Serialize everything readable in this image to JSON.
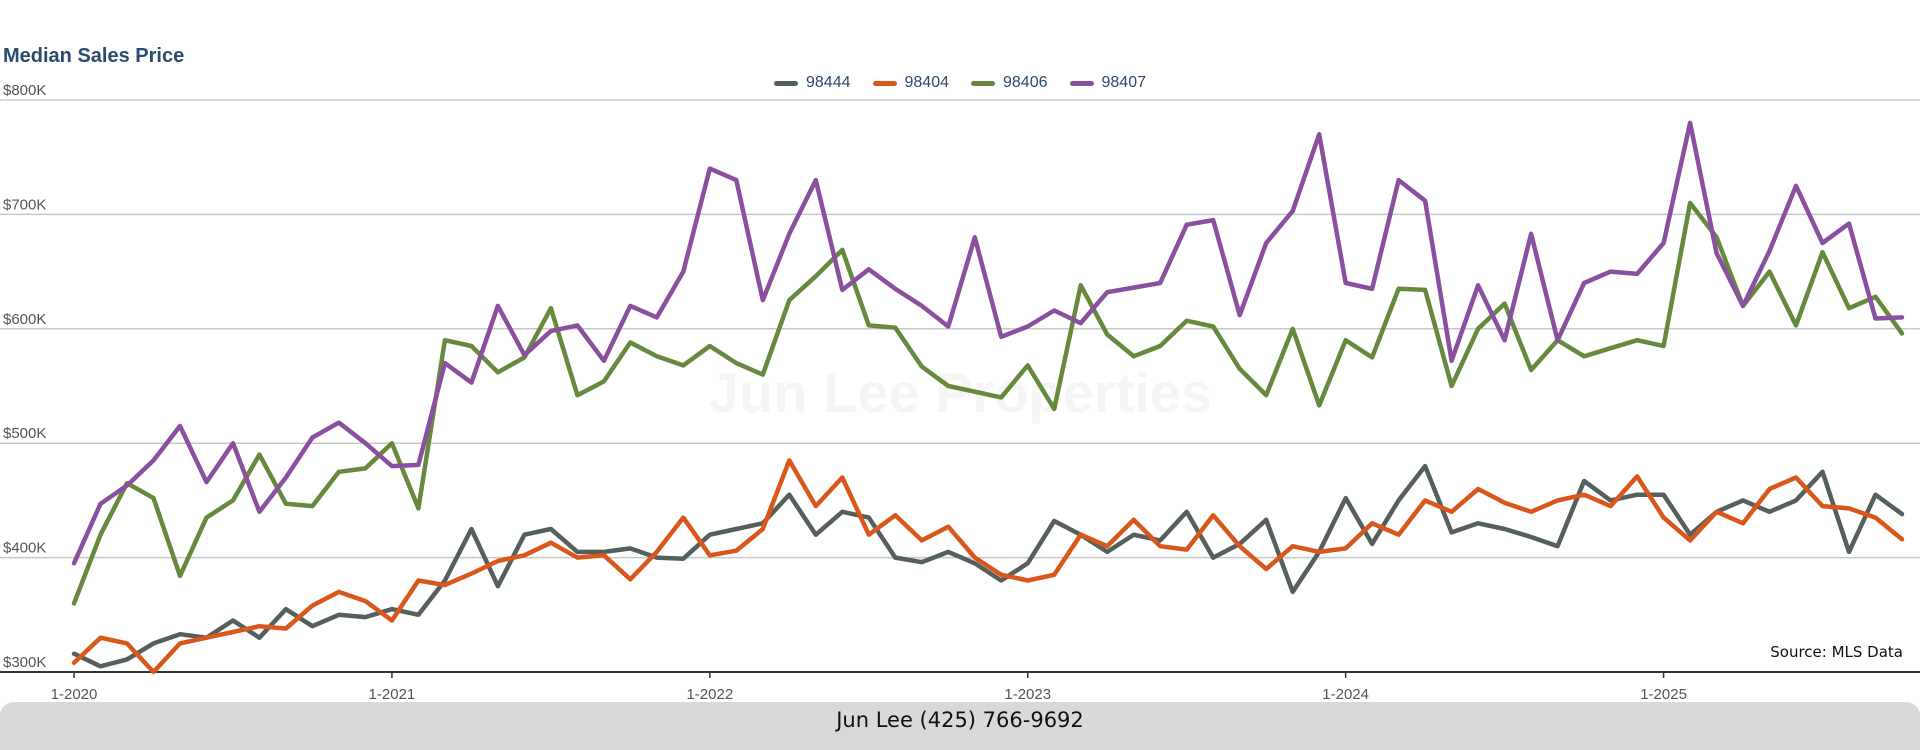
{
  "chart_data": {
    "type": "line",
    "title": "Median Sales Price",
    "xlabel": "",
    "ylabel": "",
    "ylim": [
      300000,
      800000
    ],
    "xlim": [
      "2020-01",
      "2025-10"
    ],
    "yticks": [
      300000,
      400000,
      500000,
      600000,
      700000,
      800000
    ],
    "ytick_labels": [
      "$300K",
      "$400K",
      "$500K",
      "$600K",
      "$700K",
      "$800K"
    ],
    "xticks": [
      "2020-01",
      "2021-01",
      "2022-01",
      "2023-01",
      "2024-01",
      "2025-01"
    ],
    "xtick_labels": [
      "1-2020",
      "1-2021",
      "1-2022",
      "1-2023",
      "1-2024",
      "1-2025"
    ],
    "grid": "horizontal",
    "legend_position": "top-center",
    "x": [
      "2020-01",
      "2020-02",
      "2020-03",
      "2020-04",
      "2020-05",
      "2020-06",
      "2020-07",
      "2020-08",
      "2020-09",
      "2020-10",
      "2020-11",
      "2020-12",
      "2021-01",
      "2021-02",
      "2021-03",
      "2021-04",
      "2021-05",
      "2021-06",
      "2021-07",
      "2021-08",
      "2021-09",
      "2021-10",
      "2021-11",
      "2021-12",
      "2022-01",
      "2022-02",
      "2022-03",
      "2022-04",
      "2022-05",
      "2022-06",
      "2022-07",
      "2022-08",
      "2022-09",
      "2022-10",
      "2022-11",
      "2022-12",
      "2023-01",
      "2023-02",
      "2023-03",
      "2023-04",
      "2023-05",
      "2023-06",
      "2023-07",
      "2023-08",
      "2023-09",
      "2023-10",
      "2023-11",
      "2023-12",
      "2024-01",
      "2024-02",
      "2024-03",
      "2024-04",
      "2024-05",
      "2024-06",
      "2024-07",
      "2024-08",
      "2024-09",
      "2024-10",
      "2024-11",
      "2024-12",
      "2025-01",
      "2025-02",
      "2025-03",
      "2025-04",
      "2025-05",
      "2025-06",
      "2025-07",
      "2025-08",
      "2025-09",
      "2025-10"
    ],
    "series": [
      {
        "name": "98444",
        "color": "#555f5c",
        "values": [
          316000,
          305000,
          311000,
          325000,
          333000,
          330000,
          345000,
          330000,
          355000,
          340000,
          350000,
          348000,
          355000,
          350000,
          380000,
          425000,
          375000,
          420000,
          425000,
          405000,
          405000,
          408000,
          400000,
          399000,
          420000,
          425000,
          430000,
          455000,
          420000,
          440000,
          435000,
          400000,
          396000,
          405000,
          395000,
          380000,
          395000,
          432000,
          420000,
          405000,
          420000,
          415000,
          440000,
          400000,
          412000,
          433000,
          370000,
          405000,
          452000,
          412000,
          450000,
          480000,
          422000,
          430000,
          425000,
          418000,
          410000,
          467000,
          450000,
          455000,
          455000,
          420000,
          440000,
          450000,
          440000,
          450000,
          475000,
          405000,
          455000,
          438000
        ]
      },
      {
        "name": "98404",
        "color": "#d9571b",
        "values": [
          308000,
          330000,
          325000,
          300000,
          325000,
          330000,
          335000,
          340000,
          338000,
          358000,
          370000,
          362000,
          345000,
          380000,
          376000,
          386000,
          397000,
          402000,
          413000,
          400000,
          402000,
          381000,
          405000,
          435000,
          402000,
          406000,
          425000,
          485000,
          445000,
          470000,
          420000,
          437000,
          415000,
          427000,
          400000,
          385000,
          380000,
          385000,
          420000,
          410000,
          433000,
          410000,
          407000,
          437000,
          410000,
          390000,
          410000,
          405000,
          408000,
          430000,
          420000,
          450000,
          440000,
          460000,
          448000,
          440000,
          450000,
          455000,
          445000,
          471000,
          435000,
          415000,
          440000,
          430000,
          460000,
          470000,
          445000,
          443000,
          435000,
          416000
        ]
      },
      {
        "name": "98406",
        "color": "#66893e",
        "values": [
          360000,
          420000,
          465000,
          452000,
          384000,
          435000,
          450000,
          490000,
          447000,
          445000,
          475000,
          478000,
          500000,
          443000,
          590000,
          585000,
          562000,
          575000,
          618000,
          542000,
          554000,
          588000,
          576000,
          568000,
          585000,
          570000,
          560000,
          625000,
          646000,
          669000,
          603000,
          601000,
          567000,
          550000,
          545000,
          540000,
          568000,
          530000,
          638000,
          595000,
          576000,
          585000,
          607000,
          602000,
          565000,
          542000,
          600000,
          533000,
          590000,
          575000,
          635000,
          634000,
          550000,
          600000,
          622000,
          564000,
          590000,
          576000,
          583000,
          590000,
          585000,
          710000,
          680000,
          620000,
          650000,
          603000,
          667000,
          618000,
          628000,
          596000
        ]
      },
      {
        "name": "98407",
        "color": "#8a4f9e",
        "values": [
          395000,
          447000,
          463000,
          485000,
          515000,
          466000,
          500000,
          440000,
          470000,
          505000,
          518000,
          500000,
          480000,
          481000,
          570000,
          553000,
          620000,
          577000,
          598000,
          603000,
          572000,
          620000,
          610000,
          650000,
          740000,
          730000,
          625000,
          683000,
          730000,
          634000,
          652000,
          635000,
          620000,
          602000,
          680000,
          593000,
          602000,
          616000,
          605000,
          632000,
          636000,
          640000,
          691000,
          695000,
          612000,
          675000,
          703000,
          770000,
          640000,
          635000,
          730000,
          712000,
          572000,
          638000,
          590000,
          683000,
          590000,
          640000,
          650000,
          648000,
          675000,
          780000,
          666000,
          620000,
          668000,
          725000,
          675000,
          692000,
          609000,
          610000
        ]
      }
    ],
    "annotations": {
      "source": "Source: MLS Data",
      "watermark": "Jun Lee Properties"
    }
  },
  "footer": {
    "contact": "Jun Lee (425) 766-9692"
  }
}
